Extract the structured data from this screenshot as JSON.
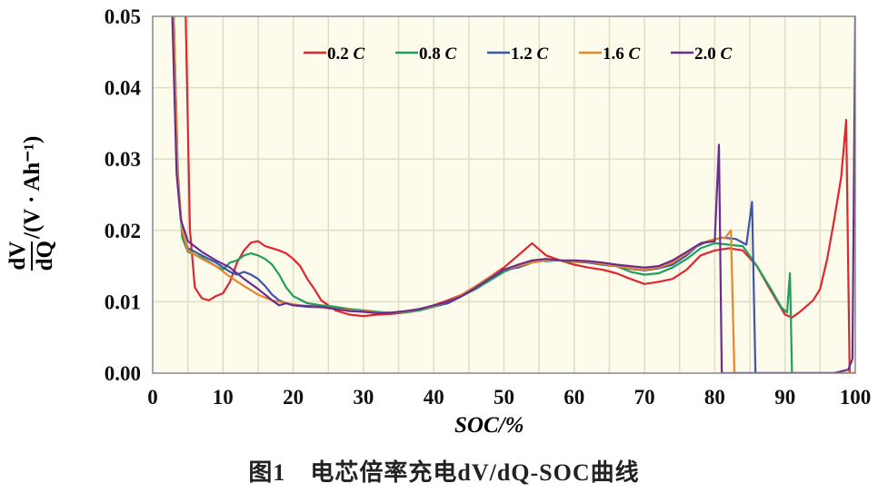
{
  "chart_data": {
    "type": "line",
    "xlabel": "SOC/%",
    "ylabel": "dV/dQ/(V·Ah⁻¹)",
    "ylabel_parts": {
      "num": "dV",
      "den": "dQ",
      "unit": "/(V · Ah⁻¹)"
    },
    "xlim": [
      0,
      100
    ],
    "ylim": [
      0,
      0.05
    ],
    "xticks": [
      "0",
      "10",
      "20",
      "30",
      "40",
      "50",
      "60",
      "70",
      "80",
      "90",
      "100"
    ],
    "yticks": [
      "0.00",
      "0.01",
      "0.02",
      "0.03",
      "0.04",
      "0.05"
    ],
    "grid": true,
    "legend": "top",
    "background": "#fdfbec",
    "series": [
      {
        "name": "0.2 C",
        "color": "#e0262e",
        "points": [
          [
            4.7,
            0.05
          ],
          [
            5.3,
            0.02
          ],
          [
            6,
            0.012
          ],
          [
            7,
            0.0105
          ],
          [
            8,
            0.0102
          ],
          [
            9,
            0.0108
          ],
          [
            10,
            0.0112
          ],
          [
            11,
            0.0128
          ],
          [
            12,
            0.0155
          ],
          [
            13,
            0.0172
          ],
          [
            14,
            0.0183
          ],
          [
            15,
            0.0185
          ],
          [
            16,
            0.0178
          ],
          [
            17,
            0.0175
          ],
          [
            18,
            0.0172
          ],
          [
            19,
            0.0168
          ],
          [
            20,
            0.016
          ],
          [
            21,
            0.015
          ],
          [
            22,
            0.0132
          ],
          [
            23,
            0.0118
          ],
          [
            24,
            0.0102
          ],
          [
            25,
            0.0095
          ],
          [
            26,
            0.0088
          ],
          [
            28,
            0.0082
          ],
          [
            30,
            0.008
          ],
          [
            32,
            0.0082
          ],
          [
            34,
            0.0083
          ],
          [
            36,
            0.0085
          ],
          [
            38,
            0.0088
          ],
          [
            40,
            0.0095
          ],
          [
            42,
            0.0102
          ],
          [
            44,
            0.011
          ],
          [
            46,
            0.0122
          ],
          [
            48,
            0.0135
          ],
          [
            50,
            0.0148
          ],
          [
            52,
            0.0165
          ],
          [
            54,
            0.0182
          ],
          [
            56,
            0.0165
          ],
          [
            58,
            0.0158
          ],
          [
            60,
            0.0152
          ],
          [
            62,
            0.0148
          ],
          [
            64,
            0.0145
          ],
          [
            66,
            0.014
          ],
          [
            68,
            0.0132
          ],
          [
            70,
            0.0125
          ],
          [
            72,
            0.0128
          ],
          [
            74,
            0.0132
          ],
          [
            76,
            0.0145
          ],
          [
            78,
            0.0165
          ],
          [
            80,
            0.0172
          ],
          [
            82,
            0.0175
          ],
          [
            84,
            0.0172
          ],
          [
            86,
            0.015
          ],
          [
            88,
            0.0115
          ],
          [
            90,
            0.0082
          ],
          [
            91,
            0.0078
          ],
          [
            92,
            0.0085
          ],
          [
            94,
            0.0102
          ],
          [
            95,
            0.0118
          ],
          [
            96,
            0.016
          ],
          [
            97,
            0.0215
          ],
          [
            98,
            0.0275
          ],
          [
            98.7,
            0.0355
          ],
          [
            99.2,
            0.0
          ],
          [
            100,
            0.0
          ]
        ]
      },
      {
        "name": "0.8 C",
        "color": "#1ea05a",
        "points": [
          [
            3,
            0.05
          ],
          [
            3.6,
            0.028
          ],
          [
            4.2,
            0.019
          ],
          [
            5,
            0.017
          ],
          [
            7,
            0.0162
          ],
          [
            9,
            0.015
          ],
          [
            10,
            0.0145
          ],
          [
            11,
            0.0155
          ],
          [
            12,
            0.0158
          ],
          [
            13,
            0.0165
          ],
          [
            14,
            0.0168
          ],
          [
            15,
            0.0165
          ],
          [
            16,
            0.016
          ],
          [
            17,
            0.0152
          ],
          [
            18,
            0.0138
          ],
          [
            19,
            0.012
          ],
          [
            20,
            0.0108
          ],
          [
            22,
            0.0098
          ],
          [
            24,
            0.0095
          ],
          [
            26,
            0.0093
          ],
          [
            28,
            0.009
          ],
          [
            30,
            0.0088
          ],
          [
            32,
            0.0086
          ],
          [
            34,
            0.0084
          ],
          [
            36,
            0.0085
          ],
          [
            38,
            0.0088
          ],
          [
            40,
            0.0093
          ],
          [
            42,
            0.0098
          ],
          [
            44,
            0.0108
          ],
          [
            46,
            0.0118
          ],
          [
            48,
            0.013
          ],
          [
            50,
            0.0142
          ],
          [
            52,
            0.015
          ],
          [
            54,
            0.0158
          ],
          [
            56,
            0.0157
          ],
          [
            58,
            0.0158
          ],
          [
            60,
            0.0156
          ],
          [
            62,
            0.0155
          ],
          [
            64,
            0.0152
          ],
          [
            66,
            0.015
          ],
          [
            68,
            0.0142
          ],
          [
            70,
            0.0138
          ],
          [
            72,
            0.014
          ],
          [
            74,
            0.0148
          ],
          [
            76,
            0.016
          ],
          [
            78,
            0.0175
          ],
          [
            80,
            0.0182
          ],
          [
            82,
            0.018
          ],
          [
            84,
            0.0178
          ],
          [
            86,
            0.015
          ],
          [
            88,
            0.0118
          ],
          [
            89.5,
            0.0092
          ],
          [
            90.3,
            0.0085
          ],
          [
            90.7,
            0.014
          ],
          [
            91,
            0.0
          ],
          [
            100,
            0.0
          ]
        ]
      },
      {
        "name": "1.2 C",
        "color": "#3c56a8",
        "points": [
          [
            3,
            0.05
          ],
          [
            3.6,
            0.026
          ],
          [
            4.3,
            0.0195
          ],
          [
            5,
            0.0175
          ],
          [
            7,
            0.0165
          ],
          [
            9,
            0.0155
          ],
          [
            11,
            0.0142
          ],
          [
            12,
            0.0138
          ],
          [
            13,
            0.0142
          ],
          [
            14,
            0.0138
          ],
          [
            15,
            0.0132
          ],
          [
            16,
            0.0122
          ],
          [
            17,
            0.011
          ],
          [
            18,
            0.0102
          ],
          [
            19,
            0.0098
          ],
          [
            20,
            0.0095
          ],
          [
            22,
            0.0093
          ],
          [
            24,
            0.0092
          ],
          [
            26,
            0.009
          ],
          [
            28,
            0.0088
          ],
          [
            30,
            0.0086
          ],
          [
            32,
            0.0085
          ],
          [
            34,
            0.0084
          ],
          [
            36,
            0.0086
          ],
          [
            38,
            0.009
          ],
          [
            40,
            0.0094
          ],
          [
            42,
            0.0098
          ],
          [
            44,
            0.0108
          ],
          [
            46,
            0.012
          ],
          [
            48,
            0.0133
          ],
          [
            50,
            0.0145
          ],
          [
            52,
            0.0148
          ],
          [
            54,
            0.0155
          ],
          [
            56,
            0.0158
          ],
          [
            58,
            0.0158
          ],
          [
            60,
            0.0157
          ],
          [
            62,
            0.0155
          ],
          [
            64,
            0.0152
          ],
          [
            66,
            0.015
          ],
          [
            68,
            0.0146
          ],
          [
            70,
            0.0144
          ],
          [
            72,
            0.0147
          ],
          [
            74,
            0.0152
          ],
          [
            76,
            0.0165
          ],
          [
            77.5,
            0.0178
          ],
          [
            79,
            0.0185
          ],
          [
            81,
            0.019
          ],
          [
            83,
            0.0188
          ],
          [
            84.5,
            0.018
          ],
          [
            85.3,
            0.024
          ],
          [
            85.8,
            0.0
          ],
          [
            100,
            0.0
          ]
        ]
      },
      {
        "name": "1.6 C",
        "color": "#e8862e",
        "points": [
          [
            3,
            0.05
          ],
          [
            3.6,
            0.027
          ],
          [
            4.2,
            0.02
          ],
          [
            5,
            0.0172
          ],
          [
            7,
            0.016
          ],
          [
            9,
            0.015
          ],
          [
            11,
            0.0135
          ],
          [
            13,
            0.0122
          ],
          [
            15,
            0.011
          ],
          [
            17,
            0.0102
          ],
          [
            19,
            0.0098
          ],
          [
            21,
            0.0095
          ],
          [
            23,
            0.0093
          ],
          [
            25,
            0.0091
          ],
          [
            27,
            0.0089
          ],
          [
            30,
            0.0087
          ],
          [
            32,
            0.0085
          ],
          [
            34,
            0.0085
          ],
          [
            36,
            0.0086
          ],
          [
            38,
            0.009
          ],
          [
            40,
            0.0094
          ],
          [
            42,
            0.01
          ],
          [
            44,
            0.011
          ],
          [
            46,
            0.0122
          ],
          [
            48,
            0.0135
          ],
          [
            50,
            0.0145
          ],
          [
            52,
            0.015
          ],
          [
            54,
            0.0155
          ],
          [
            56,
            0.0158
          ],
          [
            58,
            0.0158
          ],
          [
            60,
            0.0157
          ],
          [
            62,
            0.0156
          ],
          [
            64,
            0.0153
          ],
          [
            66,
            0.015
          ],
          [
            68,
            0.0147
          ],
          [
            70,
            0.0145
          ],
          [
            72,
            0.0148
          ],
          [
            74,
            0.0155
          ],
          [
            76,
            0.0168
          ],
          [
            78,
            0.0182
          ],
          [
            80,
            0.0188
          ],
          [
            81.5,
            0.019
          ],
          [
            82.3,
            0.02
          ],
          [
            82.8,
            0.0
          ],
          [
            100,
            0.0
          ]
        ]
      },
      {
        "name": "2.0 C",
        "color": "#6a2d8f",
        "points": [
          [
            2.8,
            0.05
          ],
          [
            3.4,
            0.028
          ],
          [
            4,
            0.0215
          ],
          [
            5,
            0.0185
          ],
          [
            7,
            0.017
          ],
          [
            9,
            0.0158
          ],
          [
            11,
            0.0148
          ],
          [
            13,
            0.0132
          ],
          [
            15,
            0.0118
          ],
          [
            16,
            0.011
          ],
          [
            17,
            0.0102
          ],
          [
            18,
            0.0095
          ],
          [
            19,
            0.0098
          ],
          [
            20,
            0.0095
          ],
          [
            22,
            0.0094
          ],
          [
            24,
            0.0093
          ],
          [
            26,
            0.009
          ],
          [
            28,
            0.0087
          ],
          [
            30,
            0.0086
          ],
          [
            32,
            0.0084
          ],
          [
            34,
            0.0085
          ],
          [
            36,
            0.0087
          ],
          [
            38,
            0.009
          ],
          [
            40,
            0.0095
          ],
          [
            42,
            0.01
          ],
          [
            44,
            0.0108
          ],
          [
            46,
            0.012
          ],
          [
            48,
            0.0133
          ],
          [
            50,
            0.0145
          ],
          [
            52,
            0.0152
          ],
          [
            54,
            0.0158
          ],
          [
            56,
            0.016
          ],
          [
            58,
            0.0158
          ],
          [
            60,
            0.0158
          ],
          [
            62,
            0.0157
          ],
          [
            64,
            0.0155
          ],
          [
            66,
            0.0152
          ],
          [
            68,
            0.015
          ],
          [
            70,
            0.0148
          ],
          [
            72,
            0.015
          ],
          [
            74,
            0.0158
          ],
          [
            76,
            0.017
          ],
          [
            78,
            0.0182
          ],
          [
            80,
            0.0185
          ],
          [
            80.6,
            0.032
          ],
          [
            81,
            0.0
          ],
          [
            97,
            0.0
          ],
          [
            99,
            0.0005
          ],
          [
            99.6,
            0.002
          ],
          [
            100,
            0.05
          ]
        ]
      }
    ]
  },
  "caption": "图1　电芯倍率充电dV/dQ-SOC曲线"
}
